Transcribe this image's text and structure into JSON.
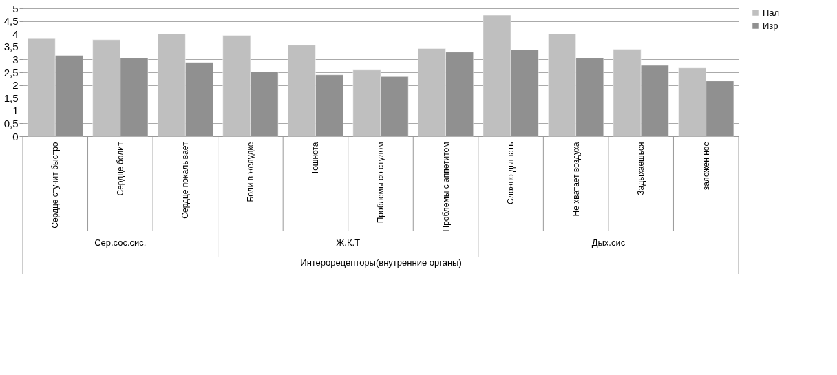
{
  "chart_data": {
    "type": "bar",
    "categories": [
      "Сердце стучит быстро",
      "Сердце болит",
      "Сердце покалывает",
      "Боли в желудке",
      "Тошнота",
      "Проблемы со стулом",
      "Проблемы с аппетитом",
      "Сложно дышать",
      "Не хватает воздуха",
      "Задыхаешься",
      "заложен нос"
    ],
    "series": [
      {
        "name": "Пал",
        "color": "#bfbfbf",
        "values": [
          3.84,
          3.77,
          4.0,
          3.94,
          3.56,
          2.59,
          3.43,
          4.73,
          4.0,
          3.4,
          2.67
        ]
      },
      {
        "name": "Изр",
        "color": "#909090",
        "values": [
          3.16,
          3.05,
          2.88,
          2.52,
          2.4,
          2.33,
          3.29,
          3.39,
          3.05,
          2.77,
          2.16
        ]
      }
    ],
    "xlabel": "Интерорецепторы(внутренние органы)",
    "annotations": [
      "Сер.сос.сис.",
      "Ж.К.Т",
      "Дых.сис"
    ],
    "ylim": [
      0,
      5
    ],
    "yticks": [
      0,
      {
        "value": 0.5,
        "label": "0,5"
      },
      1,
      {
        "value": 1.5,
        "label": "1,5"
      },
      2,
      {
        "value": 2.5,
        "label": "2,5"
      },
      3,
      {
        "value": 3.5,
        "label": "3,5"
      },
      4,
      {
        "value": 4.5,
        "label": "4,5"
      },
      5
    ],
    "grid": "y",
    "legend": "right"
  }
}
